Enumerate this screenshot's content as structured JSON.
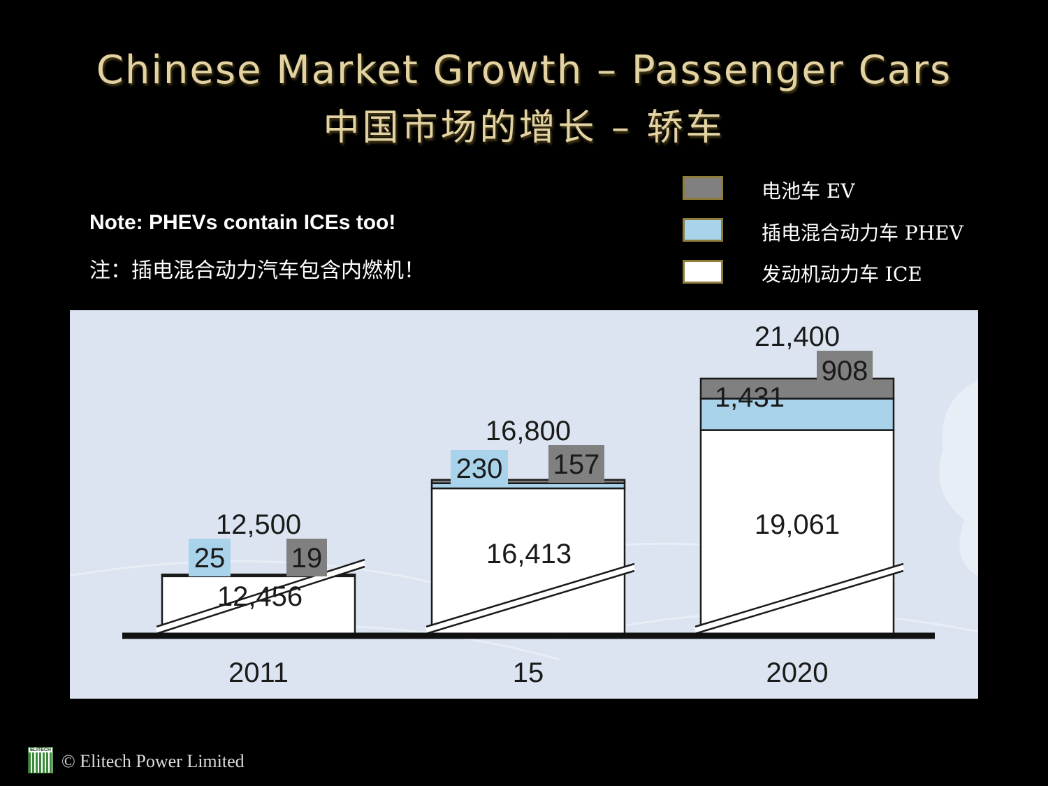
{
  "title_en": "Chinese Market Growth – Passenger Cars",
  "title_zh": "中国市场的增长 – 轿车",
  "note_en": "Note: PHEVs contain ICEs too!",
  "note_zh": "注：插电混合动力汽车包含内燃机！",
  "legend": [
    {
      "label": "电池车 EV",
      "color": "#808080"
    },
    {
      "label": "插电混合动力车 PHEV",
      "color": "#a9d3ea"
    },
    {
      "label": "发动机动力车 ICE",
      "color": "#ffffff"
    }
  ],
  "chart_data": {
    "type": "bar",
    "stacked": true,
    "categories": [
      "2011",
      "15",
      "2020"
    ],
    "series": [
      {
        "name": "发动机动力车 ICE",
        "values": [
          12456,
          16413,
          19061
        ],
        "color": "#ffffff"
      },
      {
        "name": "插电混合动力车 PHEV",
        "values": [
          25,
          230,
          1431
        ],
        "color": "#a9d3ea"
      },
      {
        "name": "电池车 EV",
        "values": [
          19,
          157,
          908
        ],
        "color": "#808080"
      }
    ],
    "totals": [
      12500,
      16800,
      21400
    ],
    "value_labels": {
      "ice": [
        "12,456",
        "16,413",
        "19,061"
      ],
      "phev": [
        "25",
        "230",
        "1,431"
      ],
      "ev": [
        "19",
        "157",
        "908"
      ],
      "total": [
        "12,500",
        "16,800",
        "21,400"
      ]
    },
    "axis_break": true,
    "background": "#dbe4f0"
  },
  "footer": {
    "logo_text": "ELITECH",
    "copyright": "© Elitech Power Limited"
  }
}
